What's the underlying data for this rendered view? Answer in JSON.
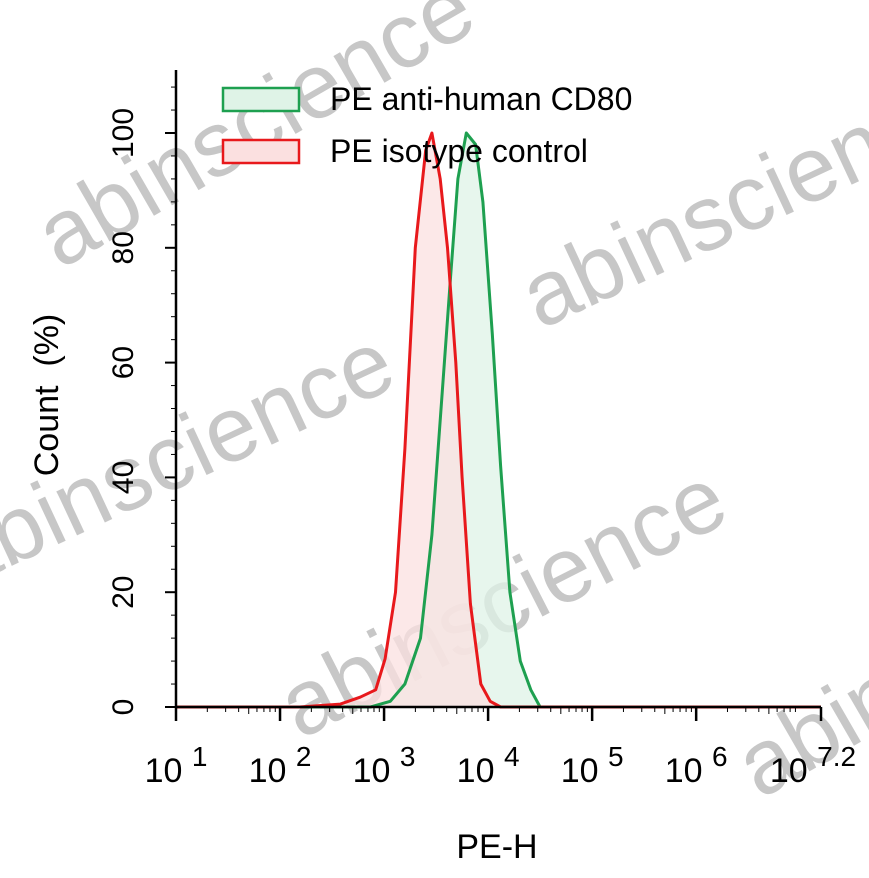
{
  "chart_data": {
    "type": "area",
    "title": "",
    "xlabel": "PE-H",
    "ylabel": "Count  (%)",
    "x_scale": "log10",
    "xlim_log10": [
      1,
      7.2
    ],
    "ylim": [
      0,
      100
    ],
    "x_tick_labels": [
      {
        "base": "10",
        "exp": "1",
        "log10": 1
      },
      {
        "base": "10",
        "exp": "2",
        "log10": 2
      },
      {
        "base": "10",
        "exp": "3",
        "log10": 3
      },
      {
        "base": "10",
        "exp": "4",
        "log10": 4
      },
      {
        "base": "10",
        "exp": "5",
        "log10": 5
      },
      {
        "base": "10",
        "exp": "6",
        "log10": 6
      },
      {
        "base": "10",
        "exp": "7.2",
        "log10": 7.2
      }
    ],
    "y_ticks": [
      0,
      20,
      40,
      60,
      80,
      100
    ],
    "grid": false,
    "legend_position": "top",
    "series": [
      {
        "name": "PE anti-human CD80",
        "color": "#1ea050",
        "fill": "#dff3e7",
        "x_log10": [
          2.87,
          3.06,
          3.2,
          3.35,
          3.46,
          3.56,
          3.64,
          3.71,
          3.79,
          3.88,
          3.95,
          4.04,
          4.12,
          4.21,
          4.31,
          4.41,
          4.5
        ],
        "y": [
          0,
          1,
          4,
          12,
          30,
          55,
          75,
          92,
          100,
          98,
          88,
          65,
          42,
          20,
          8,
          3,
          0
        ]
      },
      {
        "name": "PE isotype control",
        "color": "#e8191c",
        "fill": "#fbe0e0",
        "x_log10": [
          2.19,
          2.58,
          2.77,
          2.92,
          3.01,
          3.11,
          3.2,
          3.3,
          3.4,
          3.46,
          3.54,
          3.61,
          3.69,
          3.75,
          3.83,
          3.93,
          4.02,
          4.12
        ],
        "y": [
          0,
          0.5,
          1.7,
          3,
          8.4,
          20,
          45,
          80,
          97,
          100,
          92,
          80,
          60,
          40,
          18,
          4,
          1,
          0
        ]
      }
    ]
  },
  "watermark": "abinscience"
}
